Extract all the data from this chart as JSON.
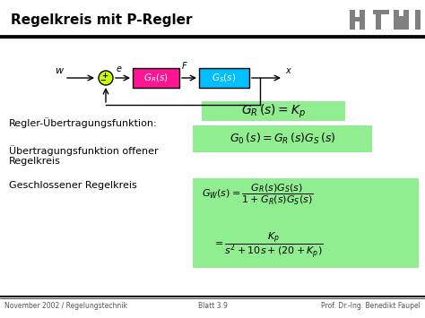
{
  "title": "Regelkreis mit P-Regler",
  "footer_left": "November 2002 / Regelungstechnik",
  "footer_center": "Blatt 3.9",
  "footer_right": "Prof. Dr.-Ing. Benedikt Faupel",
  "eq_bg": "#90EE90",
  "block_gr_color": "#FF1493",
  "block_gs_color": "#00BFFF",
  "sumjunction_color": "#CCFF00",
  "htw_color": "#808080",
  "title_font": 11,
  "body_font": 8,
  "eq_font": 9,
  "eq_font_large": 10
}
